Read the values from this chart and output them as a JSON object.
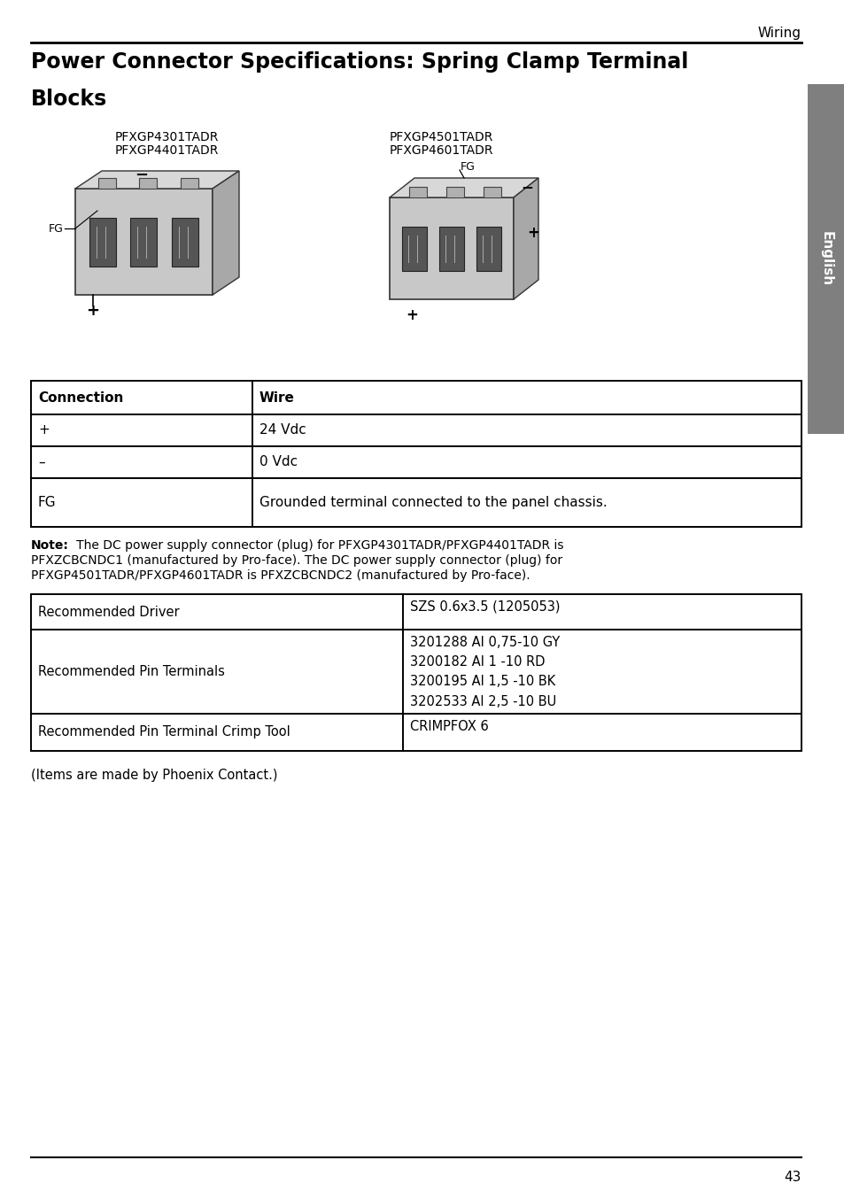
{
  "page_header": "Wiring",
  "title_line1": "Power Connector Specifications: Spring Clamp Terminal",
  "title_line2": "Blocks",
  "sidebar_text": "English",
  "image_left_label1": "PFXGP4301TADR",
  "image_left_label2": "PFXGP4401TADR",
  "image_right_label1": "PFXGP4501TADR",
  "image_right_label2": "PFXGP4601TADR",
  "connection_table_headers": [
    "Connection",
    "Wire"
  ],
  "connection_table_rows": [
    [
      "+",
      "24 Vdc"
    ],
    [
      "–",
      "0 Vdc"
    ],
    [
      "FG",
      "Grounded terminal connected to the panel chassis."
    ]
  ],
  "note_bold": "Note:",
  "note_text": "   The DC power supply connector (plug) for PFXGP4301TADR/PFXGP4401TADR is\nPFXZCBCNDC1 (manufactured by Pro-face). The DC power supply connector (plug) for\nPFXGP4501TADR/PFXGP4601TADR is PFXZCBCNDC2 (manufactured by Pro-face).",
  "rec_table_rows": [
    [
      "Recommended Driver",
      "SZS 0.6x3.5 (1205053)"
    ],
    [
      "Recommended Pin Terminals",
      "3201288 AI 0,75-10 GY\n3200182 AI 1 -10 RD\n3200195 AI 1,5 -10 BK\n3202533 AI 2,5 -10 BU"
    ],
    [
      "Recommended Pin Terminal Crimp Tool",
      "CRIMPFOX 6"
    ]
  ],
  "footer_note": "(Items are made by Phoenix Contact.)",
  "page_number": "43",
  "bg_color": "#ffffff",
  "text_color": "#000000",
  "sidebar_bg": "#7f7f7f",
  "table_border_color": "#000000"
}
